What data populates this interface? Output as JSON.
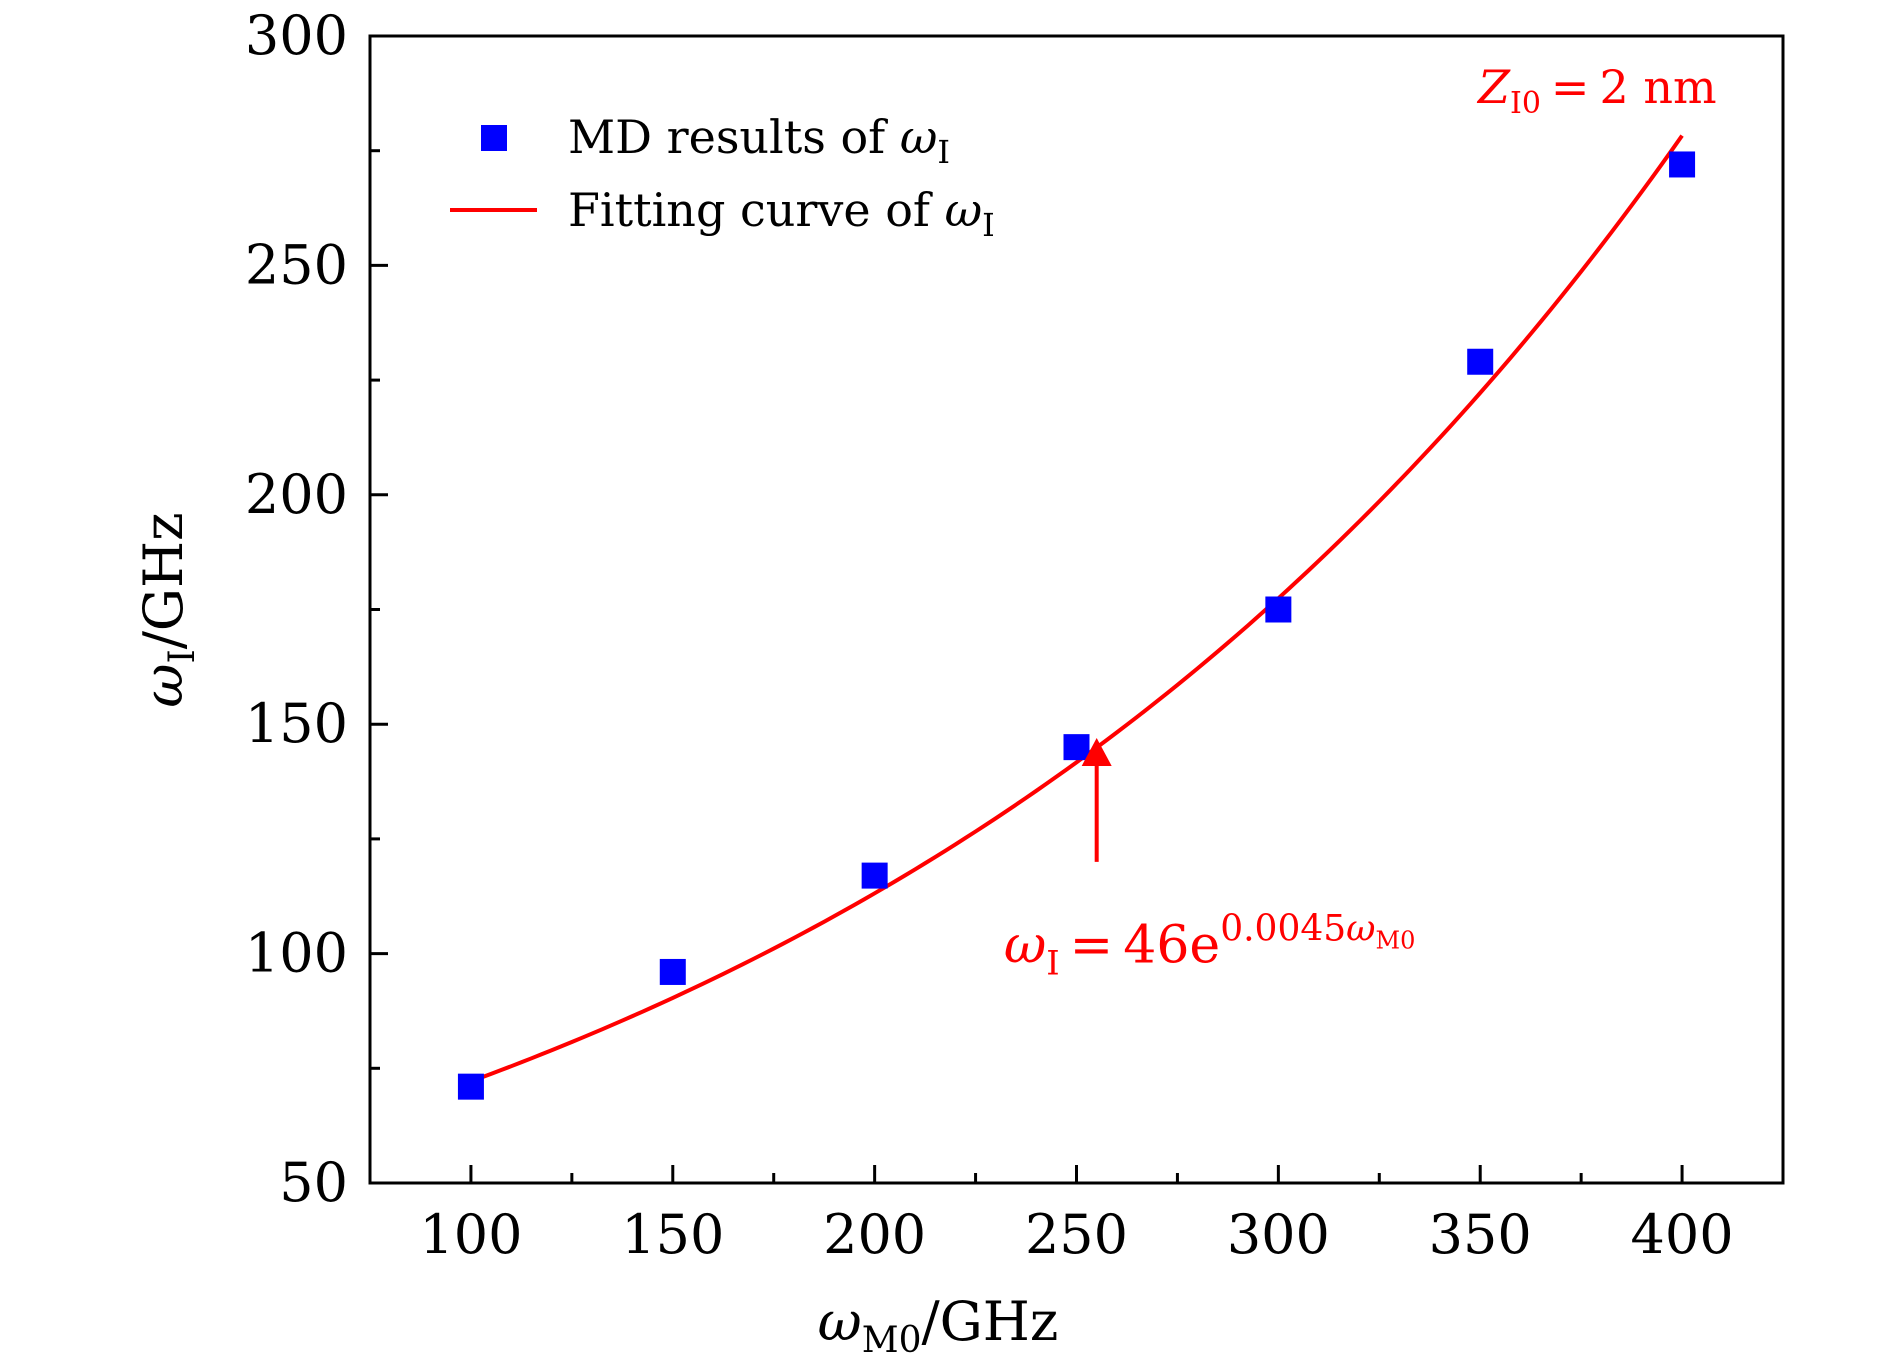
{
  "chart_data": {
    "type": "scatter",
    "xlim": [
      75,
      425
    ],
    "ylim": [
      50,
      300
    ],
    "x_ticks": [
      100,
      150,
      200,
      250,
      300,
      350,
      400
    ],
    "x_tick_labels": [
      "100",
      "150",
      "200",
      "250",
      "300",
      "350",
      "400"
    ],
    "y_ticks": [
      50,
      100,
      150,
      200,
      250,
      300
    ],
    "y_tick_labels": [
      "50",
      "100",
      "150",
      "200",
      "250",
      "300"
    ],
    "x_minor_ticks": [
      125,
      175,
      225,
      275,
      325,
      375
    ],
    "y_minor_ticks": [
      75,
      125,
      175,
      225,
      275
    ],
    "xlabel": {
      "symbol": "ω",
      "sub": "M0",
      "rest": "/GHz"
    },
    "ylabel": {
      "symbol": "ω",
      "sub": "I",
      "rest": "/GHz"
    },
    "grid": false,
    "legend_position": "top-left",
    "legend": [
      {
        "text": "MD results of ",
        "symbol": "ω",
        "sub": "I",
        "marker": "square",
        "color": "#0000ff"
      },
      {
        "text": "Fitting curve of ",
        "symbol": "ω",
        "sub": "I",
        "marker": "line",
        "color": "#ff0000"
      }
    ],
    "series": [
      {
        "kind": "markers",
        "marker": "square",
        "color": "#0000ff",
        "x": [
          100,
          150,
          200,
          250,
          300,
          350,
          400
        ],
        "y": [
          71,
          96,
          117,
          145,
          175,
          229,
          272
        ]
      },
      {
        "kind": "fit",
        "color": "#ff0000",
        "amplitude": 46,
        "rate": 0.0045,
        "x_range": [
          100,
          400
        ]
      }
    ],
    "annotations": [
      {
        "id": "equation",
        "color": "#ff0000",
        "lhs_symbol": "ω",
        "lhs_sub": "I",
        "equals": "=",
        "base": "46e",
        "exponent": "0.0045",
        "exponent_symbol": "ω",
        "exponent_sub": "M0",
        "arrow_tip": [
          255,
          147
        ],
        "arrow_tail": [
          255,
          120
        ],
        "label_at": [
          232,
          102
        ]
      },
      {
        "id": "condition",
        "color": "#ff0000",
        "symbol": "Z",
        "sub": "I0",
        "equals": "=",
        "value": "2 nm"
      }
    ]
  }
}
